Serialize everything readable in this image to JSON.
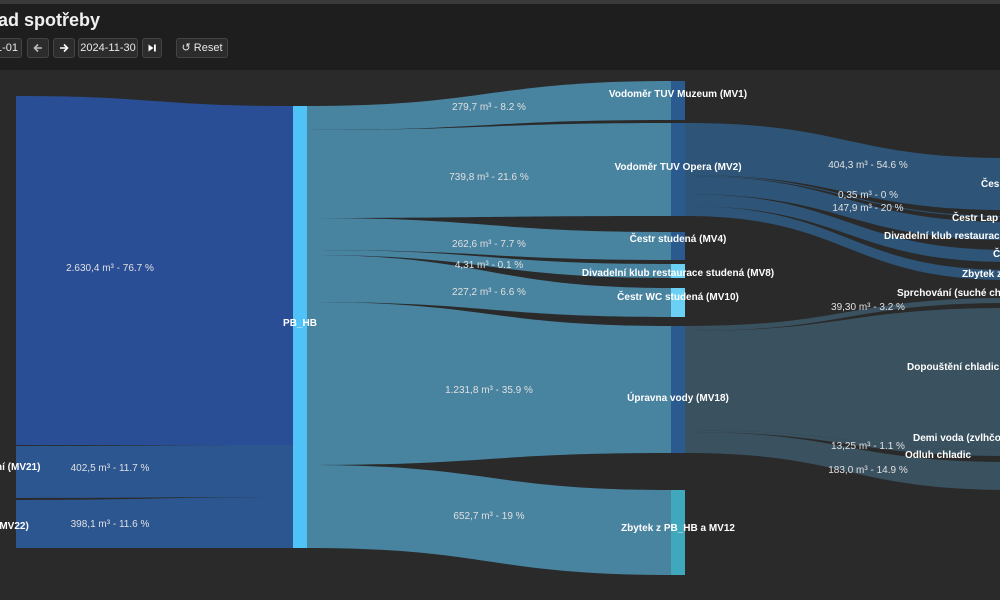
{
  "header": {
    "title": "ad spotřeby",
    "date_from": "1-01",
    "date_to": "2024-11-30",
    "reset_label": "Reset"
  },
  "icons": {
    "prev": "arrow-left-icon",
    "next": "arrow-right-icon",
    "last": "skip-to-end-icon",
    "reset": "undo-icon"
  },
  "colors": {
    "background": "#2a2a2a",
    "header": "#1e1e1e",
    "hub": "#4fc3f7",
    "source_main": "#2a4e96",
    "source_secondary": "#2c5690",
    "link": "#4a88a6",
    "node_dark": "#2a5a8e",
    "node_light": "#6ad0f5",
    "node_teal": "#3fa8bc"
  },
  "chart_data": {
    "type": "sankey",
    "unit": "m³",
    "nodes": [
      {
        "id": "src_main",
        "label": ""
      },
      {
        "id": "mv21",
        "label": "ní (MV21)"
      },
      {
        "id": "mv22",
        "label": "(MV22)"
      },
      {
        "id": "pb_hb",
        "label": "PB_HB"
      },
      {
        "id": "mv1",
        "label": "Vodoměr TUV Muzeum (MV1)"
      },
      {
        "id": "mv2",
        "label": "Vodoměr TUV Opera (MV2)"
      },
      {
        "id": "mv4",
        "label": "Čestr studená (MV4)"
      },
      {
        "id": "mv8",
        "label": "Divadelní klub restaurace studená (MV8)"
      },
      {
        "id": "mv10",
        "label": "Čestr WC studená (MV10)"
      },
      {
        "id": "mv18",
        "label": "Úpravna vody (MV18)"
      },
      {
        "id": "zbytek",
        "label": "Zbytek z PB_HB a MV12"
      },
      {
        "id": "t_cestr",
        "label": "Čes"
      },
      {
        "id": "t_lap",
        "label": "Čestr Lap"
      },
      {
        "id": "t_divadelni",
        "label": "Divadelní klub restaurac"
      },
      {
        "id": "t_c",
        "label": "Č"
      },
      {
        "id": "t_zbytek",
        "label": "Zbytek z"
      },
      {
        "id": "t_sprch",
        "label": "Sprchování (suché ch"
      },
      {
        "id": "t_dopousteni",
        "label": "Dopouštění chladic"
      },
      {
        "id": "t_demi",
        "label": "Demi voda (zvlhčo"
      },
      {
        "id": "t_odluh",
        "label": "Odluh chladic"
      }
    ],
    "links": [
      {
        "source": "src_main",
        "target": "pb_hb",
        "label": "2.630,4 m³ - 76.7 %",
        "value": 2630.4,
        "percent": 76.7
      },
      {
        "source": "mv21",
        "target": "pb_hb",
        "label": "402,5 m³ - 11.7 %",
        "value": 402.5,
        "percent": 11.7
      },
      {
        "source": "mv22",
        "target": "pb_hb",
        "label": "398,1 m³ - 11.6 %",
        "value": 398.1,
        "percent": 11.6
      },
      {
        "source": "pb_hb",
        "target": "mv1",
        "label": "279,7 m³ - 8.2 %",
        "value": 279.7,
        "percent": 8.2
      },
      {
        "source": "pb_hb",
        "target": "mv2",
        "label": "739,8 m³ - 21.6 %",
        "value": 739.8,
        "percent": 21.6
      },
      {
        "source": "pb_hb",
        "target": "mv4",
        "label": "262,6 m³ - 7.7 %",
        "value": 262.6,
        "percent": 7.7
      },
      {
        "source": "pb_hb",
        "target": "mv8",
        "label": "4,31 m³ - 0.1 %",
        "value": 4.31,
        "percent": 0.1
      },
      {
        "source": "pb_hb",
        "target": "mv10",
        "label": "227,2 m³ - 6.6 %",
        "value": 227.2,
        "percent": 6.6
      },
      {
        "source": "pb_hb",
        "target": "mv18",
        "label": "1.231,8 m³ - 35.9 %",
        "value": 1231.8,
        "percent": 35.9
      },
      {
        "source": "pb_hb",
        "target": "zbytek",
        "label": "652,7 m³ - 19 %",
        "value": 652.7,
        "percent": 19
      },
      {
        "source": "mv2",
        "target": "t_cestr",
        "label": "404,3 m³ - 54.6 %",
        "value": 404.3,
        "percent": 54.6
      },
      {
        "source": "mv2",
        "target": "t_lap",
        "label": "0,35 m³ - 0 %",
        "value": 0.35,
        "percent": 0
      },
      {
        "source": "mv2",
        "target": "t_divadelni",
        "label": "147,9 m³ - 20 %",
        "value": 147.9,
        "percent": 20
      },
      {
        "source": "mv2",
        "target": "t_c",
        "label": "",
        "value": null,
        "percent": null
      },
      {
        "source": "mv2",
        "target": "t_zbytek",
        "label": "",
        "value": null,
        "percent": null
      },
      {
        "source": "mv18",
        "target": "t_sprch",
        "label": "39,30 m³ - 3.2 %",
        "value": 39.3,
        "percent": 3.2
      },
      {
        "source": "mv18",
        "target": "t_dopousteni",
        "label": "",
        "value": null,
        "percent": null
      },
      {
        "source": "mv18",
        "target": "t_demi",
        "label": "13,25 m³ - 1.1 %",
        "value": 13.25,
        "percent": 1.1
      },
      {
        "source": "mv18",
        "target": "t_odluh",
        "label": "183,0 m³ - 14.9 %",
        "value": 183.0,
        "percent": 14.9
      }
    ]
  }
}
